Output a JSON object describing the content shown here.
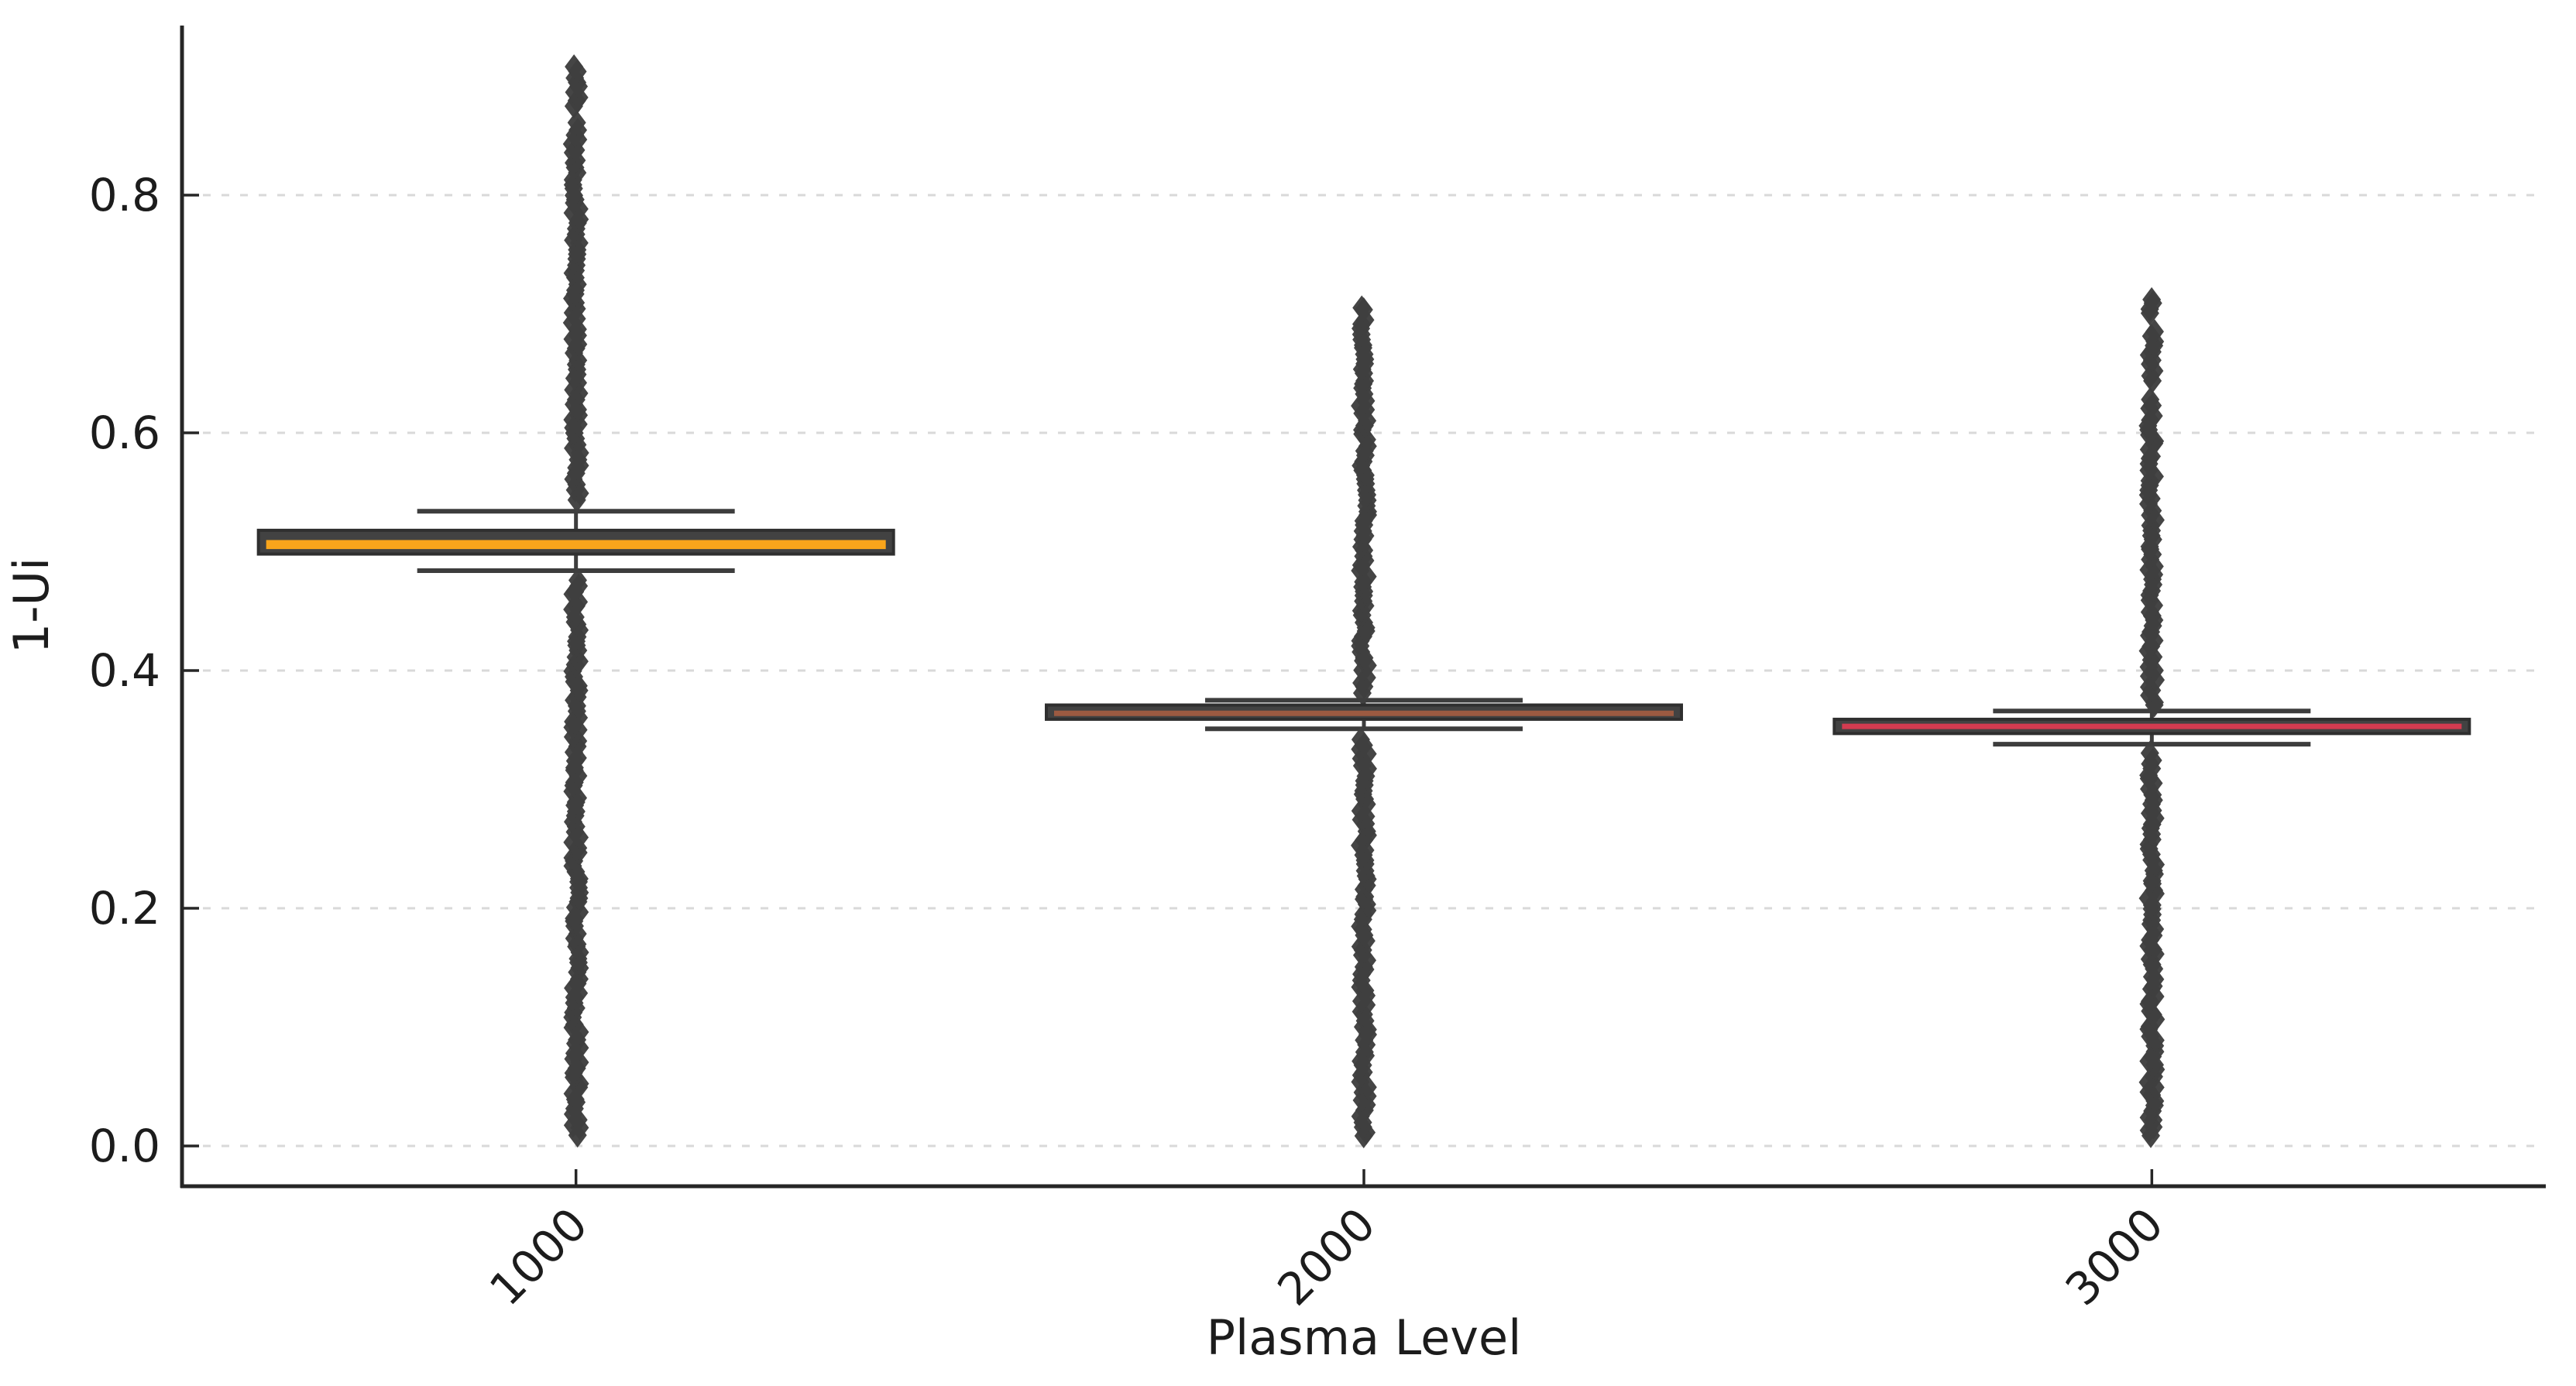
{
  "figure": {
    "background": "#ffffff"
  },
  "chart_data": {
    "type": "boxplot",
    "title": "",
    "xlabel": "Plasma Level",
    "ylabel": "1-Ui",
    "categories": [
      "1000",
      "2000",
      "3000"
    ],
    "yticks": [
      0.0,
      0.2,
      0.4,
      0.6,
      0.8
    ],
    "ylim": [
      -0.035,
      0.943
    ],
    "grid": {
      "axis": "y",
      "style": "dashed",
      "color": "#d9d9d9"
    },
    "legend": null,
    "box_style": {
      "fill": "#424242",
      "edge": "#2f2f2f",
      "whisker": "#3d3d3d",
      "flier": "#3f3f3f",
      "flier_shape": "diamond"
    },
    "axis_style": {
      "spine": "#262626",
      "tick": "#262626",
      "label_color": "#1c1c1c",
      "tick_direction": "in"
    },
    "series": [
      {
        "category": "1000",
        "q1": 0.498,
        "median": 0.506,
        "q3": 0.518,
        "whisker_low": 0.484,
        "whisker_high": 0.534,
        "median_color": "#F9A51B",
        "outlier_segments_low": [
          [
            0.008,
            0.478
          ]
        ],
        "outlier_segments_high": [
          [
            0.542,
            0.862
          ],
          [
            0.872,
            0.91
          ]
        ],
        "outlier_min": 0.008,
        "outlier_max": 0.91
      },
      {
        "category": "2000",
        "q1": 0.359,
        "median": 0.364,
        "q3": 0.371,
        "whisker_low": 0.351,
        "whisker_high": 0.375,
        "median_color": "#9C5A41",
        "outlier_segments_low": [
          [
            0.006,
            0.344
          ]
        ],
        "outlier_segments_high": [
          [
            0.38,
            0.698
          ],
          [
            0.702,
            0.706
          ]
        ],
        "outlier_min": 0.006,
        "outlier_max": 0.706
      },
      {
        "category": "3000",
        "q1": 0.347,
        "median": 0.353,
        "q3": 0.359,
        "whisker_low": 0.338,
        "whisker_high": 0.366,
        "median_color": "#D23B50",
        "outlier_segments_low": [
          [
            0.006,
            0.332
          ]
        ],
        "outlier_segments_high": [
          [
            0.368,
            0.63
          ],
          [
            0.642,
            0.688
          ],
          [
            0.698,
            0.714
          ]
        ],
        "outlier_min": 0.006,
        "outlier_max": 0.714
      }
    ]
  }
}
